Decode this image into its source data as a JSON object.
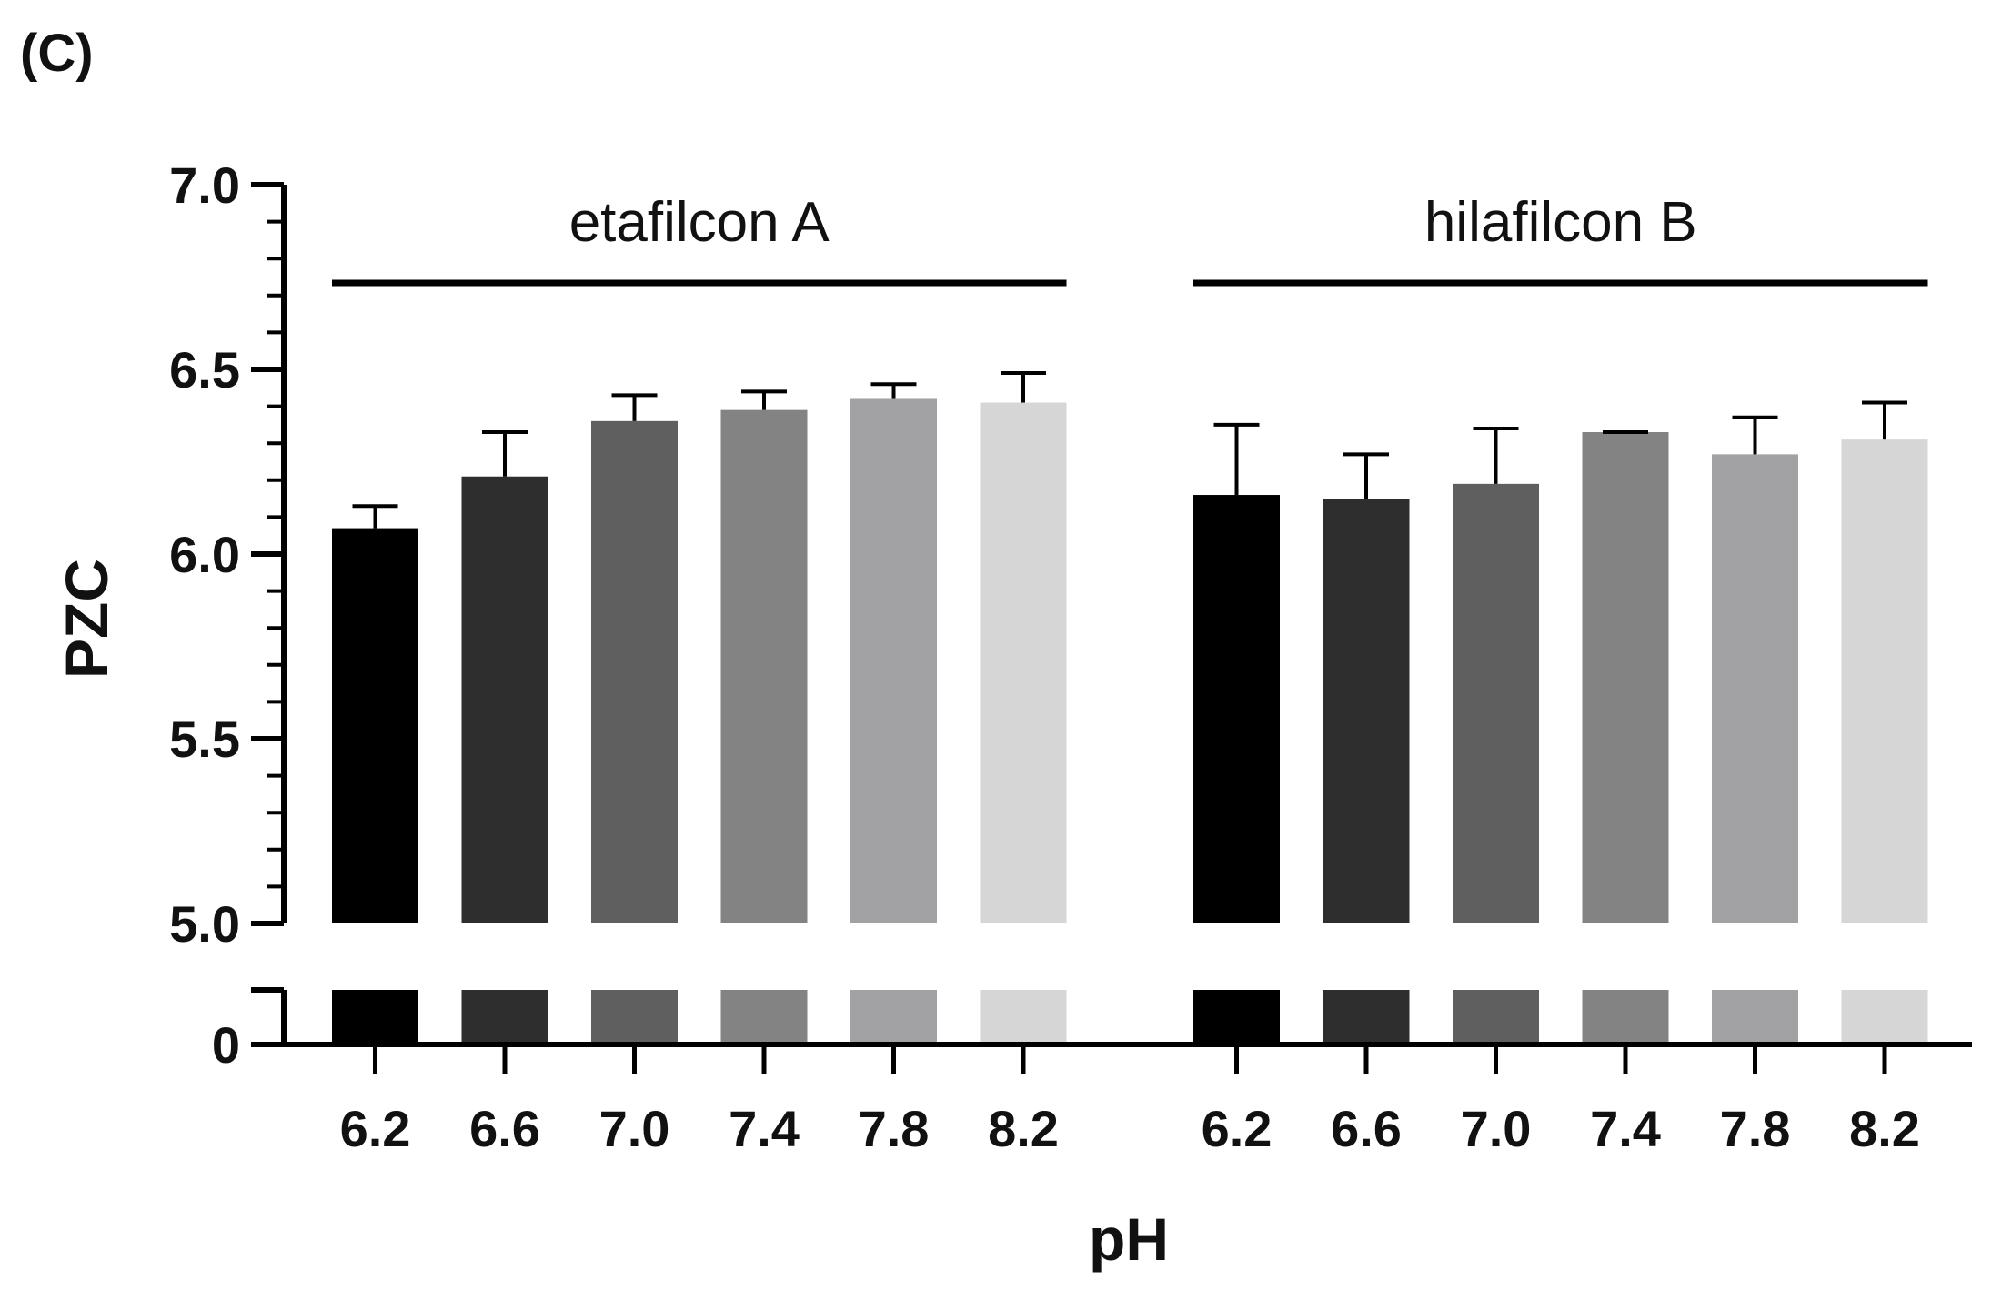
{
  "panel_label": "(C)",
  "chart_data": {
    "type": "bar",
    "title": "",
    "xlabel": "pH",
    "ylabel": "PZC",
    "ylim": [
      5.0,
      7.0
    ],
    "broken_axis": true,
    "lower_segment_tick": "0",
    "y_ticks": [
      "5.0",
      "5.5",
      "6.0",
      "6.5",
      "7.0"
    ],
    "colors": [
      "#000000",
      "#2e2e2e",
      "#5f5f5f",
      "#838383",
      "#a2a2a5",
      "#d6d6d6"
    ],
    "groups": [
      {
        "name": "etafilcon A",
        "categories": [
          "6.2",
          "6.6",
          "7.0",
          "7.4",
          "7.8",
          "8.2"
        ],
        "values": [
          6.07,
          6.21,
          6.36,
          6.39,
          6.42,
          6.41
        ],
        "errors": [
          0.06,
          0.12,
          0.07,
          0.05,
          0.04,
          0.08
        ]
      },
      {
        "name": "hilafilcon B",
        "categories": [
          "6.2",
          "6.6",
          "7.0",
          "7.4",
          "7.8",
          "8.2"
        ],
        "values": [
          6.16,
          6.15,
          6.19,
          6.33,
          6.27,
          6.31
        ],
        "errors": [
          0.19,
          0.12,
          0.15,
          0.0,
          0.1,
          0.1
        ]
      }
    ]
  }
}
